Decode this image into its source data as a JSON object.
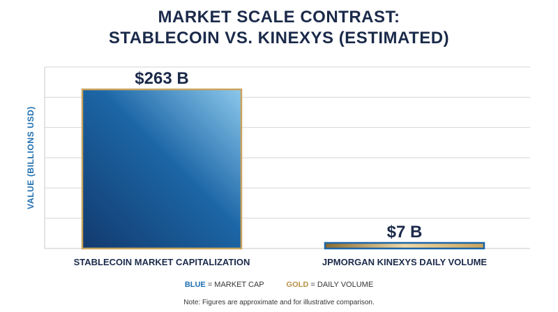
{
  "chart_data": {
    "type": "bar",
    "title_lines": [
      "MARKET SCALE CONTRAST:",
      "STABLECOIN VS. KINEXYS (ESTIMATED)"
    ],
    "ylabel": "VALUE (BILLIONS USD)",
    "xlabel": "",
    "categories": [
      "STABLECOIN MARKET CAPITALIZATION",
      "JPMORGAN KINEXYS DAILY VOLUME"
    ],
    "values": [
      263,
      7
    ],
    "value_labels": [
      "$263 B",
      "$7 B"
    ],
    "ylim": [
      0,
      300
    ],
    "grid": true,
    "legend": {
      "placement": "bottom-center",
      "items": [
        {
          "key": "BLUE",
          "desc": "= MARKET CAP"
        },
        {
          "key": "GOLD",
          "desc": "= DAILY VOLUME"
        }
      ]
    },
    "footnote": "Note: Figures are approximate and for illustrative comparison."
  },
  "colors": {
    "title": "#1b2a4a",
    "axis_label": "#1f6fb0",
    "bar_blue_dark": "#123a6e",
    "bar_blue_mid": "#1c66a6",
    "bar_blue_light": "#8cc8ec",
    "gold": "#c9a35c",
    "gold_dark": "#8a6a30",
    "gold_light": "#efd9a6",
    "grid": "#d6d6d6"
  }
}
